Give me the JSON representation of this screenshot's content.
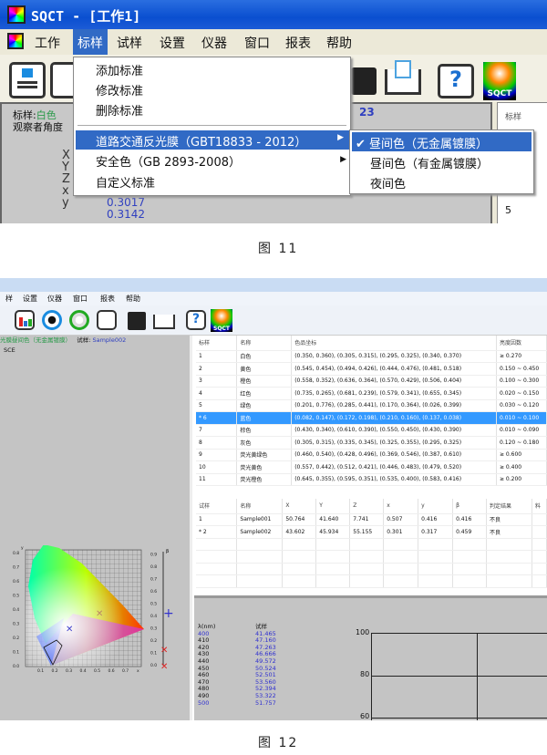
{
  "figure11": {
    "window_title": "SQCT - [工作1]",
    "menu": [
      "工作",
      "标样",
      "试样",
      "设置",
      "仪器",
      "窗口",
      "报表",
      "帮助"
    ],
    "active_menu": "标样",
    "dropdown": [
      "添加标准",
      "修改标准",
      "删除标准",
      "道路交通反光膜（GBT18833 - 2012）",
      "安全色（GB 2893-2008）",
      "自定义标准"
    ],
    "submenu": [
      "昼间色（无金属镀膜）",
      "昼间色（有金属镀膜）",
      "夜间色"
    ],
    "checkmark": "✔",
    "panel": {
      "std_label": "标样:",
      "std_value": "白色",
      "observer": "观察者角度",
      "tri_labels": [
        "X",
        "Y",
        "Z",
        "x",
        "y"
      ],
      "x_value": "0.3017",
      "y_value": "0.3142",
      "partial_value": "23"
    },
    "right_panel": {
      "header": "标样",
      "row": "5"
    },
    "toolbar_logo": "SQCT",
    "caption": "图 11"
  },
  "figure12": {
    "menu": [
      "样",
      "设置",
      "仪器",
      "窗口",
      "报表",
      "帮助"
    ],
    "toolbar_logo": "SQCT",
    "status": {
      "std": "光膜昼间色（无金属镀膜）",
      "sample_label": "试样:",
      "sample_value": "Sample002",
      "mode": "SCE"
    },
    "chromaticity": {
      "x_ticks": [
        "0.1",
        "0.2",
        "0.3",
        "0.4",
        "0.5",
        "0.6",
        "0.7"
      ],
      "y_ticks": [
        "0.0",
        "0.1",
        "0.2",
        "0.3",
        "0.4",
        "0.5",
        "0.6",
        "0.7",
        "0.8"
      ],
      "x_label": "x",
      "y_label": "y"
    },
    "beta_scale": {
      "label": "β",
      "ticks": [
        "0.0",
        "0.1",
        "0.2",
        "0.3",
        "0.4",
        "0.5",
        "0.6",
        "0.7",
        "0.8",
        "0.9"
      ]
    },
    "std_table": {
      "headers": [
        "标样",
        "名称",
        "色品坐标",
        "亮度因数"
      ],
      "rows": [
        [
          "1",
          "白色",
          "(0.350, 0.360), (0.305, 0.315), (0.295, 0.325), (0.340, 0.370)",
          "≥ 0.270"
        ],
        [
          "2",
          "黄色",
          "(0.545, 0.454), (0.494, 0.426), (0.444, 0.476), (0.481, 0.518)",
          "0.150 ~ 0.450"
        ],
        [
          "3",
          "橙色",
          "(0.558, 0.352), (0.636, 0.364), (0.570, 0.429), (0.506, 0.404)",
          "0.100 ~ 0.300"
        ],
        [
          "4",
          "红色",
          "(0.735, 0.265), (0.681, 0.239), (0.579, 0.341), (0.655, 0.345)",
          "0.020 ~ 0.150"
        ],
        [
          "5",
          "绿色",
          "(0.201, 0.776), (0.285, 0.441), (0.170, 0.364), (0.026, 0.399)",
          "0.030 ~ 0.120"
        ],
        [
          "* 6",
          "蓝色",
          "(0.082, 0.147), (0.172, 0.198), (0.210, 0.160), (0.137, 0.038)",
          "0.010 ~ 0.100"
        ],
        [
          "7",
          "棕色",
          "(0.430, 0.340), (0.610, 0.390), (0.550, 0.450), (0.430, 0.390)",
          "0.010 ~ 0.090"
        ],
        [
          "8",
          "灰色",
          "(0.305, 0.315), (0.335, 0.345), (0.325, 0.355), (0.295, 0.325)",
          "0.120 ~ 0.180"
        ],
        [
          "9",
          "荧光黄绿色",
          "(0.460, 0.540), (0.428, 0.496), (0.369, 0.546), (0.387, 0.610)",
          "≥ 0.600"
        ],
        [
          "10",
          "荧光黄色",
          "(0.557, 0.442), (0.512, 0.421), (0.446, 0.483), (0.479, 0.520)",
          "≥ 0.400"
        ],
        [
          "11",
          "荧光橙色",
          "(0.645, 0.355), (0.595, 0.351), (0.535, 0.400), (0.583, 0.416)",
          "≥ 0.200"
        ]
      ]
    },
    "sample_table": {
      "headers": [
        "试样",
        "名称",
        "X",
        "Y",
        "Z",
        "x",
        "y",
        "β",
        "判定结果",
        "料"
      ],
      "rows": [
        [
          "1",
          "Sample001",
          "50.764",
          "41.640",
          "7.741",
          "0.507",
          "0.416",
          "0.416",
          "不良",
          ""
        ],
        [
          "* 2",
          "Sample002",
          "43.602",
          "45.934",
          "55.155",
          "0.301",
          "0.317",
          "0.459",
          "不良",
          ""
        ]
      ]
    },
    "spectrum": {
      "headers": [
        "λ(nm)",
        "试样"
      ],
      "rows": [
        [
          "400",
          "41.465"
        ],
        [
          "410",
          "47.160"
        ],
        [
          "420",
          "47.263"
        ],
        [
          "430",
          "46.666"
        ],
        [
          "440",
          "49.572"
        ],
        [
          "450",
          "50.524"
        ],
        [
          "460",
          "52.501"
        ],
        [
          "470",
          "53.560"
        ],
        [
          "480",
          "52.394"
        ],
        [
          "490",
          "53.322"
        ],
        [
          "500",
          "51.757"
        ]
      ],
      "chart_y_ticks": [
        "100",
        "80",
        "60"
      ]
    },
    "caption": "图 12"
  }
}
